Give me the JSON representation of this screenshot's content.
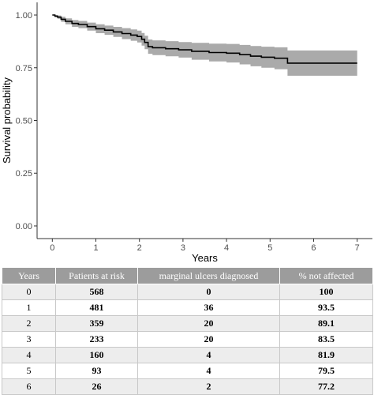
{
  "chart_data": {
    "type": "line",
    "title": "",
    "xlabel": "Years",
    "ylabel": "Survival probability",
    "xlim": [
      -0.35,
      7.35
    ],
    "ylim": [
      -0.06,
      1.06
    ],
    "x_ticks": [
      "0",
      "1",
      "2",
      "3",
      "4",
      "5",
      "6",
      "7"
    ],
    "y_ticks": [
      "0.00",
      "0.25",
      "0.50",
      "0.75",
      "1.00"
    ],
    "grid": false,
    "legend": "none",
    "series": [
      {
        "name": "",
        "color": "#000000",
        "ci_color": "#aaaaaa",
        "points": [
          [
            0.0,
            1.0,
            1.0,
            1.0
          ],
          [
            0.06,
            0.995,
            0.99,
            1.0
          ],
          [
            0.12,
            0.99,
            0.982,
            0.998
          ],
          [
            0.2,
            0.98,
            0.968,
            0.992
          ],
          [
            0.3,
            0.97,
            0.956,
            0.984
          ],
          [
            0.45,
            0.96,
            0.944,
            0.976
          ],
          [
            0.6,
            0.955,
            0.938,
            0.972
          ],
          [
            0.8,
            0.945,
            0.926,
            0.964
          ],
          [
            1.0,
            0.935,
            0.914,
            0.956
          ],
          [
            1.2,
            0.928,
            0.906,
            0.95
          ],
          [
            1.4,
            0.92,
            0.896,
            0.944
          ],
          [
            1.6,
            0.912,
            0.886,
            0.938
          ],
          [
            1.8,
            0.905,
            0.878,
            0.932
          ],
          [
            1.95,
            0.898,
            0.87,
            0.926
          ],
          [
            2.05,
            0.885,
            0.855,
            0.915
          ],
          [
            2.12,
            0.87,
            0.838,
            0.902
          ],
          [
            2.2,
            0.85,
            0.816,
            0.884
          ],
          [
            2.3,
            0.845,
            0.81,
            0.88
          ],
          [
            2.6,
            0.84,
            0.804,
            0.876
          ],
          [
            2.9,
            0.835,
            0.798,
            0.872
          ],
          [
            3.2,
            0.828,
            0.788,
            0.868
          ],
          [
            3.6,
            0.822,
            0.78,
            0.864
          ],
          [
            4.0,
            0.819,
            0.775,
            0.863
          ],
          [
            4.3,
            0.812,
            0.766,
            0.858
          ],
          [
            4.55,
            0.805,
            0.757,
            0.853
          ],
          [
            4.8,
            0.8,
            0.75,
            0.85
          ],
          [
            5.1,
            0.795,
            0.743,
            0.847
          ],
          [
            5.4,
            0.772,
            0.712,
            0.832
          ],
          [
            5.8,
            0.772,
            0.712,
            0.832
          ],
          [
            6.2,
            0.772,
            0.712,
            0.832
          ],
          [
            6.6,
            0.772,
            0.712,
            0.832
          ],
          [
            7.0,
            0.772,
            0.712,
            0.832
          ]
        ]
      }
    ]
  },
  "table": {
    "headers": [
      "Years",
      "Patients at risk",
      "marginal ulcers diagnosed",
      "% not affected"
    ],
    "rows": [
      [
        "0",
        "568",
        "0",
        "100"
      ],
      [
        "1",
        "481",
        "36",
        "93.5"
      ],
      [
        "2",
        "359",
        "20",
        "89.1"
      ],
      [
        "3",
        "233",
        "20",
        "83.5"
      ],
      [
        "4",
        "160",
        "4",
        "81.9"
      ],
      [
        "5",
        "93",
        "4",
        "79.5"
      ],
      [
        "6",
        "26",
        "2",
        "77.2"
      ]
    ]
  }
}
